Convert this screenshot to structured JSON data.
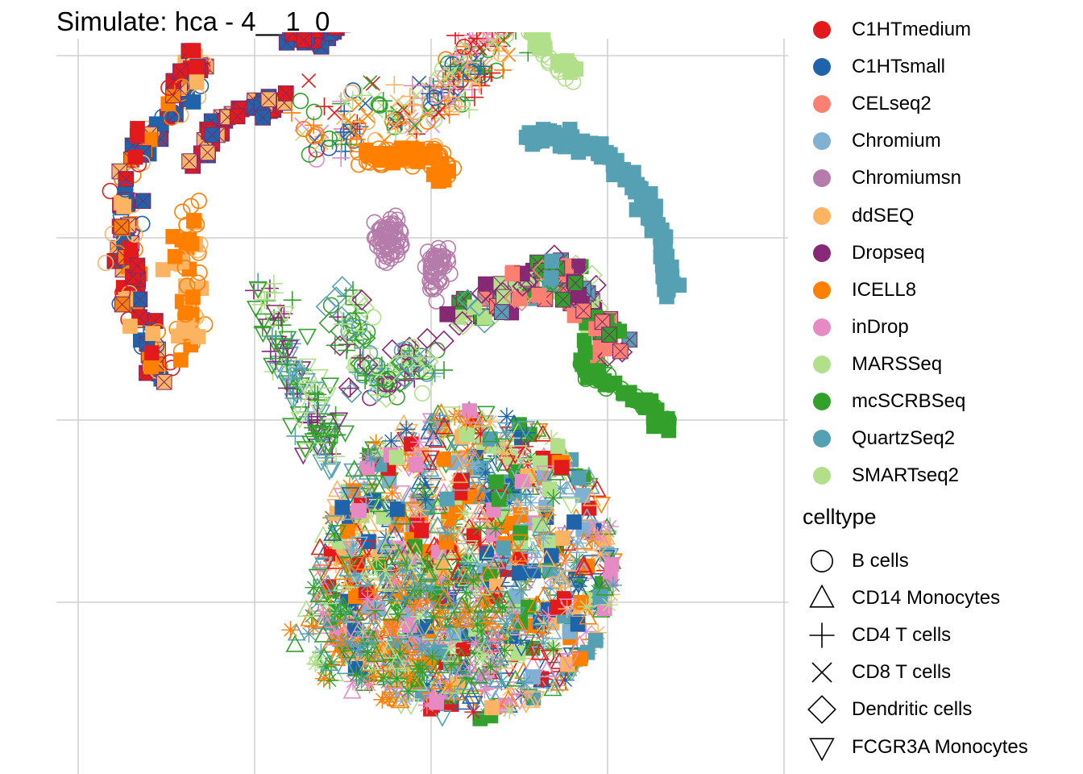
{
  "chart_data": {
    "type": "scatter",
    "title": "Simulate: hca - 4__1_0",
    "xlabel": "",
    "ylabel": "",
    "grid": true,
    "legend_position": "right",
    "color_legend": {
      "title": "",
      "entries": [
        {
          "label": "C1HTmedium",
          "color": "#E31A1C"
        },
        {
          "label": "C1HTsmall",
          "color": "#1F63AA"
        },
        {
          "label": "CELseq2",
          "color": "#FB8072"
        },
        {
          "label": "Chromium",
          "color": "#80B1D3"
        },
        {
          "label": "Chromiumsn",
          "color": "#B57BAA"
        },
        {
          "label": "ddSEQ",
          "color": "#FDB462"
        },
        {
          "label": "Dropseq",
          "color": "#8A2878"
        },
        {
          "label": "ICELL8",
          "color": "#FF7F00"
        },
        {
          "label": "inDrop",
          "color": "#E78AC3"
        },
        {
          "label": "MARSSeq",
          "color": "#B2DF8A"
        },
        {
          "label": "mcSCRBSeq",
          "color": "#33A02C"
        },
        {
          "label": "QuartzSeq2",
          "color": "#56A0B3"
        },
        {
          "label": "SMARTseq2",
          "color": "#B2DF8A"
        }
      ]
    },
    "shape_legend": {
      "title": "celltype",
      "entries": [
        {
          "label": "B cells",
          "shape": "circle"
        },
        {
          "label": "CD14 Monocytes",
          "shape": "triangle"
        },
        {
          "label": "CD4 T cells",
          "shape": "plus"
        },
        {
          "label": "CD8 T cells",
          "shape": "cross"
        },
        {
          "label": "Dendritic cells",
          "shape": "diamond"
        },
        {
          "label": "FCGR3A Monocytes",
          "shape": "triangle-down"
        }
      ]
    },
    "clusters": [
      {
        "id": "left-arc",
        "shapes": [
          "boxx",
          "square",
          "circle"
        ],
        "colors": [
          "#FF7F00",
          "#1F63AA",
          "#FDB462",
          "#E31A1C"
        ],
        "path": [
          [
            -31,
            -5
          ],
          [
            -34,
            -13
          ],
          [
            -35,
            -20
          ],
          [
            -34,
            -28
          ],
          [
            -28,
            -36
          ],
          [
            -26,
            -40
          ]
        ],
        "spread": 1.6,
        "n": 170
      },
      {
        "id": "left-inner-orange",
        "shapes": [
          "square",
          "circle"
        ],
        "colors": [
          "#FF7F00",
          "#FDB462"
        ],
        "path": [
          [
            -28,
            -8
          ],
          [
            -27,
            -12
          ],
          [
            -28,
            -18
          ],
          [
            -27,
            -24
          ]
        ],
        "spread": 1.5,
        "n": 60
      },
      {
        "id": "top-left-blue",
        "shapes": [
          "boxx"
        ],
        "colors": [
          "#1F63AA",
          "#E31A1C"
        ],
        "path": [
          [
            -16,
            -42
          ],
          [
            -13,
            -42
          ],
          [
            -10,
            -43
          ]
        ],
        "spread": 1.0,
        "n": 35
      },
      {
        "id": "top-left-arc",
        "shapes": [
          "boxx"
        ],
        "colors": [
          "#E31A1C",
          "#1F63AA",
          "#FDB462"
        ],
        "path": [
          [
            -27,
            -27
          ],
          [
            -24,
            -33
          ],
          [
            -20,
            -34
          ],
          [
            -17,
            -35
          ]
        ],
        "spread": 1.0,
        "n": 40
      },
      {
        "id": "green-ribbons",
        "shapes": [
          "plus",
          "triangle-down"
        ],
        "colors": [
          "#33A02C",
          "#8A2878",
          "#B2DF8A",
          "#56A0B3"
        ],
        "path": [
          [
            -19,
            -16
          ],
          [
            -18,
            -10
          ],
          [
            -15,
            -4
          ],
          [
            -13,
            -1
          ],
          [
            -12,
            4
          ]
        ],
        "spread": 2.4,
        "n": 140
      },
      {
        "id": "mid-ribbons",
        "shapes": [
          "plus",
          "circle",
          "diamond"
        ],
        "colors": [
          "#B2DF8A",
          "#56A0B3",
          "#33A02C",
          "#8A2878"
        ],
        "path": [
          [
            -10,
            -14
          ],
          [
            -8,
            -8
          ],
          [
            -7,
            -3
          ],
          [
            -3,
            -6
          ],
          [
            0,
            -6
          ]
        ],
        "spread": 2.4,
        "n": 130
      },
      {
        "id": "top-center-mix",
        "shapes": [
          "plus",
          "circle",
          "cross"
        ],
        "colors": [
          "#FF7F00",
          "#1F63AA",
          "#FDB462",
          "#E78AC3",
          "#33A02C",
          "#E31A1C",
          "#B2DF8A"
        ],
        "path": [
          [
            -13,
            -31
          ],
          [
            -7,
            -33
          ],
          [
            0,
            -34
          ],
          [
            3,
            -37
          ],
          [
            5,
            -40
          ],
          [
            8,
            -44
          ]
        ],
        "spread": 3.2,
        "n": 260
      },
      {
        "id": "chromiumsn-blob-1",
        "shapes": [
          "circle"
        ],
        "colors": [
          "#B57BAA"
        ],
        "path": [
          [
            -6,
            -20
          ],
          [
            -4,
            -21
          ],
          [
            -5,
            -18
          ]
        ],
        "spread": 1.3,
        "n": 70
      },
      {
        "id": "chromiumsn-blob-2",
        "shapes": [
          "circle"
        ],
        "colors": [
          "#B57BAA"
        ],
        "path": [
          [
            0,
            -16
          ],
          [
            1,
            -18
          ],
          [
            0,
            -14
          ]
        ],
        "spread": 1.1,
        "n": 55
      },
      {
        "id": "orange-band",
        "shapes": [
          "circle",
          "square"
        ],
        "colors": [
          "#FF7F00"
        ],
        "path": [
          [
            -8,
            -28
          ],
          [
            -4,
            -29
          ],
          [
            0,
            -29
          ],
          [
            2,
            -27
          ]
        ],
        "spread": 1.0,
        "n": 70
      },
      {
        "id": "smartseq2-curve",
        "shapes": [
          "square",
          "circle"
        ],
        "colors": [
          "#B2DF8A"
        ],
        "path": [
          [
            6,
            -50
          ],
          [
            5,
            -46
          ],
          [
            8,
            -44
          ],
          [
            11,
            -44
          ],
          [
            13,
            -40
          ],
          [
            16,
            -38
          ]
        ],
        "spread": 0.8,
        "n": 90
      },
      {
        "id": "quartzseq2-arc",
        "shapes": [
          "square"
        ],
        "colors": [
          "#56A0B3"
        ],
        "path": [
          [
            11,
            -31
          ],
          [
            15,
            -31
          ],
          [
            20,
            -29
          ],
          [
            24,
            -25
          ],
          [
            26,
            -20
          ],
          [
            27,
            -14
          ]
        ],
        "spread": 0.9,
        "n": 120
      },
      {
        "id": "mcscrbseq-streak",
        "shapes": [
          "square",
          "circle"
        ],
        "colors": [
          "#33A02C"
        ],
        "path": [
          [
            17,
            -6
          ],
          [
            20,
            -4
          ],
          [
            24,
            -2
          ],
          [
            27,
            1
          ]
        ],
        "spread": 0.8,
        "n": 70
      },
      {
        "id": "right-mix",
        "shapes": [
          "boxx",
          "square",
          "diamond"
        ],
        "colors": [
          "#8A2878",
          "#FB8072",
          "#B2DF8A",
          "#33A02C",
          "#56A0B3"
        ],
        "path": [
          [
            3,
            -12
          ],
          [
            8,
            -13
          ],
          [
            12,
            -15
          ],
          [
            16,
            -17
          ],
          [
            18,
            -11
          ],
          [
            21,
            -8
          ]
        ],
        "spread": 2.0,
        "n": 140
      },
      {
        "id": "big-mixed-cluster",
        "shapes": [
          "triangle",
          "asterisk",
          "triangle-down",
          "square"
        ],
        "colors": [
          "#33A02C",
          "#56A0B3",
          "#B2DF8A",
          "#80B1D3",
          "#FF7F00",
          "#E78AC3",
          "#FDB462",
          "#E31A1C",
          "#1F63AA"
        ],
        "center": [
          4,
          16
        ],
        "radii": [
          17,
          17
        ],
        "n": 1200
      },
      {
        "id": "big-cluster-bottom",
        "shapes": [
          "triangle",
          "asterisk"
        ],
        "colors": [
          "#33A02C",
          "#56A0B3",
          "#B2DF8A",
          "#FF7F00",
          "#E78AC3"
        ],
        "center": [
          -3,
          23
        ],
        "radii": [
          13,
          8
        ],
        "n": 300
      }
    ]
  }
}
